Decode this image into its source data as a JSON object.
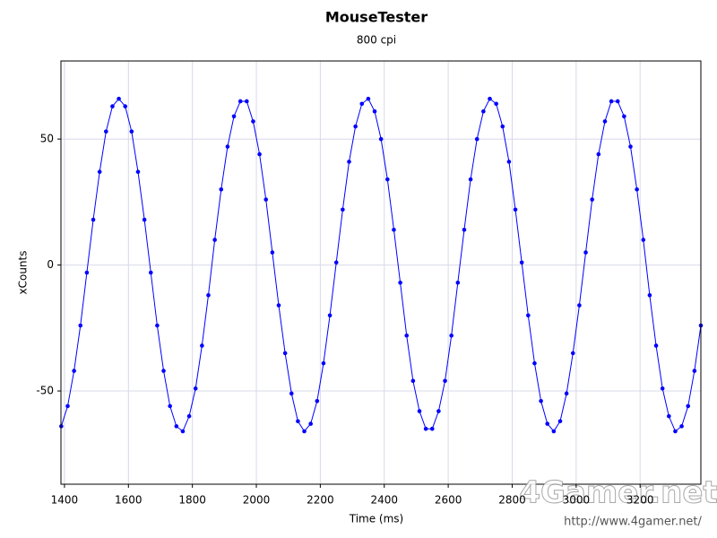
{
  "chart_data": {
    "type": "scatter-line",
    "title": "MouseTester",
    "subtitle": "800 cpi",
    "x_label": "Time (ms)",
    "y_label": "xCounts",
    "watermark": "4Gamer.net",
    "watermark_url": "http://www.4gamer.net/",
    "xlim": [
      1389,
      3390
    ],
    "ylim": [
      -87,
      81
    ],
    "xticks": [
      1400,
      1600,
      1800,
      2000,
      2200,
      2400,
      2600,
      2800,
      3000,
      3200
    ],
    "yticks": [
      -50,
      0,
      50
    ],
    "grid": true,
    "x": [
      1390,
      1410,
      1430,
      1450,
      1470,
      1490,
      1510,
      1530,
      1550,
      1570,
      1590,
      1610,
      1630,
      1650,
      1670,
      1690,
      1710,
      1730,
      1750,
      1770,
      1790,
      1810,
      1830,
      1850,
      1870,
      1890,
      1910,
      1930,
      1950,
      1970,
      1990,
      2010,
      2030,
      2050,
      2070,
      2090,
      2110,
      2130,
      2150,
      2170,
      2190,
      2210,
      2230,
      2250,
      2270,
      2290,
      2310,
      2330,
      2350,
      2370,
      2390,
      2410,
      2430,
      2450,
      2470,
      2490,
      2510,
      2530,
      2550,
      2570,
      2590,
      2610,
      2630,
      2650,
      2670,
      2690,
      2710,
      2730,
      2750,
      2770,
      2790,
      2810,
      2830,
      2850,
      2870,
      2890,
      2910,
      2930,
      2950,
      2970,
      2990,
      3010,
      3030,
      3050,
      3070,
      3090,
      3110,
      3130,
      3150,
      3170,
      3190,
      3210,
      3230,
      3250,
      3270,
      3290,
      3310,
      3330,
      3350,
      3370,
      3390
    ],
    "series": [
      {
        "name": "xCounts",
        "color": "#0000ff",
        "values": [
          -64,
          -56,
          -42,
          -24,
          -3,
          18,
          37,
          53,
          63,
          66,
          63,
          53,
          37,
          18,
          -3,
          -24,
          -42,
          -56,
          -64,
          -66,
          -60,
          -49,
          -32,
          -12,
          10,
          30,
          47,
          59,
          65,
          65,
          57,
          44,
          26,
          5,
          -16,
          -35,
          -51,
          -62,
          -66,
          -63,
          -54,
          -39,
          -20,
          1,
          22,
          41,
          55,
          64,
          66,
          61,
          50,
          34,
          14,
          -7,
          -28,
          -46,
          -58,
          -65,
          -65,
          -58,
          -46,
          -28,
          -7,
          14,
          34,
          50,
          61,
          66,
          64,
          55,
          41,
          22,
          1,
          -20,
          -39,
          -54,
          -63,
          -66,
          -62,
          -51,
          -35,
          -16,
          5,
          26,
          44,
          57,
          65,
          65,
          59,
          47,
          30,
          10,
          -12,
          -32,
          -49,
          -60,
          -66,
          -64,
          -56,
          -42,
          -24
        ]
      }
    ]
  }
}
